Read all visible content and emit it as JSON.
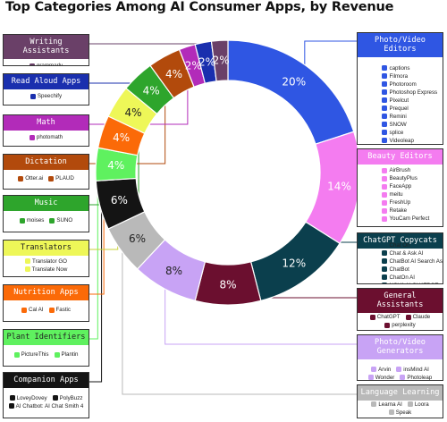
{
  "title": "Top Categories Among AI Consumer Apps, by Revenue",
  "chart_data": {
    "type": "pie",
    "title": "Top Categories Among AI Consumer Apps, by Revenue",
    "unit": "%",
    "categories": [
      {
        "name": "Photo/Video Editors",
        "value": 20,
        "label": "20%",
        "color": "#2f56e3",
        "apps": [
          "captions",
          "Filmora",
          "Photoroom",
          "Photoshop Express",
          "Pixelcut",
          "Prequel",
          "Remini",
          "SNOW",
          "splice",
          "Videoleap"
        ]
      },
      {
        "name": "Beauty Editors",
        "value": 14,
        "label": "14%",
        "color": "#f47cf0",
        "apps": [
          "AirBrush",
          "BeautyPlus",
          "FaceApp",
          "meitu",
          "FreshUp",
          "Retake",
          "YouCam Perfect"
        ]
      },
      {
        "name": "ChatGPT Copycats",
        "value": 12,
        "label": "12%",
        "color": "#0b3f4d",
        "apps": [
          "Chat On",
          "Chat & Ask AI",
          "ChatBot AI Search Assistant",
          "ChatBot",
          "ChatOn AI",
          "NOVA AI CHATBOT"
        ]
      },
      {
        "name": "General Assistants",
        "value": 8,
        "label": "8%",
        "color": "#6b0f2f",
        "apps": [
          "ChatGPT",
          "Claude",
          "perplexity",
          "Quark AI Assistant"
        ]
      },
      {
        "name": "Photo/Video Generators",
        "value": 8,
        "label": "8%",
        "color": "#c8a3f5",
        "apps": [
          "Arvin",
          "insMind AI",
          "Wonder",
          "Photoleap"
        ]
      },
      {
        "name": "Language Learning",
        "value": 6,
        "label": "6%",
        "color": "#b9b9b9",
        "apps": [
          "Learna AI",
          "Loora",
          "Speak"
        ]
      },
      {
        "name": "Companion Apps",
        "value": 6,
        "label": "6%",
        "color": "#141414",
        "apps": [
          "LoveyDovey",
          "PolyBuzz",
          "AI Chatbot: AI Chat Smith 4"
        ]
      },
      {
        "name": "Plant Identifiers",
        "value": 4,
        "label": "4%",
        "color": "#5ff15f",
        "apps": [
          "PictureThis",
          "Plantin"
        ]
      },
      {
        "name": "Nutrition Apps",
        "value": 4,
        "label": "4%",
        "color": "#fb6a08",
        "apps": [
          "Cal AI",
          "Fastic"
        ]
      },
      {
        "name": "Translators",
        "value": 4,
        "label": "4%",
        "color": "#eef758",
        "apps": [
          "Translator GO",
          "Translate Now"
        ]
      },
      {
        "name": "Music",
        "value": 4,
        "label": "4%",
        "color": "#2ea52c",
        "apps": [
          "moises",
          "SUNO"
        ]
      },
      {
        "name": "Dictation",
        "value": 4,
        "label": "4%",
        "color": "#b24a0c",
        "apps": [
          "Otter.ai",
          "PLAUD"
        ]
      },
      {
        "name": "Math",
        "value": 2,
        "label": "2%",
        "color": "#b22bb9",
        "apps": [
          "photomath"
        ]
      },
      {
        "name": "Read Aloud Apps",
        "value": 2,
        "label": "2%",
        "color": "#1a2fae",
        "apps": [
          "Speechify"
        ]
      },
      {
        "name": "Writing Assistants",
        "value": 2,
        "label": "2%",
        "color": "#6a4068",
        "apps": [
          "grammarly"
        ]
      }
    ]
  }
}
